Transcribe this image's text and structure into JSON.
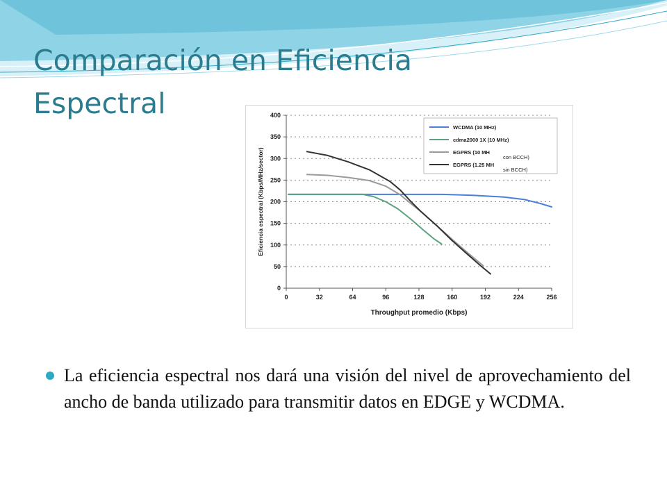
{
  "slide": {
    "title_lines": [
      "Comparación en Eficiencia",
      "Espectral"
    ],
    "bullet": "La eficiencia espectral nos dará una visión del nivel de aprovechamiento del ancho de banda utilizado para transmitir datos en EDGE y WCDMA.",
    "colors": {
      "title": "#2b7c8e",
      "bullet": "#2fa8c4",
      "wave_dark": "#8fd3e6",
      "wave_light": "#d8f0f7"
    }
  },
  "chart_data": {
    "type": "line",
    "title": "",
    "xlabel": "Throughput promedio (Kbps)",
    "ylabel": "Eficiencia espectral (Kbps/MHz/sector)",
    "xlim": [
      0,
      256
    ],
    "ylim": [
      0,
      400
    ],
    "xticks": [
      0,
      32,
      64,
      96,
      128,
      160,
      192,
      224,
      256
    ],
    "yticks": [
      0,
      50,
      100,
      150,
      200,
      250,
      300,
      350,
      400
    ],
    "grid": "horizontal dotted",
    "legend": "top-right",
    "series": [
      {
        "name": "WCDMA (10 MHz)",
        "color": "#4a7fd6",
        "x": [
          2,
          40,
          80,
          120,
          150,
          180,
          210,
          230,
          245,
          256
        ],
        "y": [
          217,
          217,
          217,
          217,
          217,
          215,
          211,
          205,
          196,
          188
        ]
      },
      {
        "name": "cdma2000 1X (10 MHz)",
        "color": "#5aa37d",
        "x": [
          2,
          40,
          74,
          84,
          96,
          108,
          120,
          132,
          142,
          150
        ],
        "y": [
          217,
          217,
          217,
          212,
          200,
          183,
          160,
          135,
          115,
          102
        ]
      },
      {
        "name": "EGPRS (10 MH",
        "note": "con BCCH)",
        "color": "#9a9a9a",
        "x": [
          20,
          40,
          60,
          80,
          96,
          110,
          120,
          130,
          145,
          160,
          175,
          190
        ],
        "y": [
          263,
          261,
          256,
          249,
          236,
          216,
          196,
          177,
          145,
          113,
          82,
          52
        ]
      },
      {
        "name": "EGPRS (1.25 MH",
        "note": "sin BCCH)",
        "color": "#333333",
        "x": [
          20,
          40,
          60,
          80,
          100,
          110,
          120,
          130,
          145,
          160,
          175,
          187,
          197
        ],
        "y": [
          316,
          307,
          292,
          274,
          247,
          227,
          201,
          177,
          145,
          110,
          78,
          53,
          33
        ]
      }
    ]
  }
}
